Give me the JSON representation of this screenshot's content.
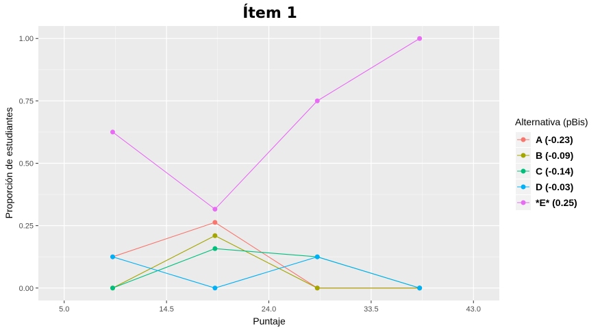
{
  "chart_data": {
    "type": "line",
    "title": "Ítem  1",
    "xlabel": "Puntaje",
    "ylabel": "Proporción de estudiantes",
    "xlim": [
      2.6,
      45.4
    ],
    "ylim": [
      -0.05,
      1.05
    ],
    "x_ticks": [
      5.0,
      14.5,
      24.0,
      33.5,
      43.0
    ],
    "x_tick_labels": [
      "5.0",
      "14.5",
      "24.0",
      "33.5",
      "43.0"
    ],
    "y_ticks": [
      0.0,
      0.25,
      0.5,
      0.75,
      1.0
    ],
    "y_tick_labels": [
      "0.00",
      "0.25",
      "0.50",
      "0.75",
      "1.00"
    ],
    "grid": true,
    "legend": {
      "title": "Alternativa (pBis)",
      "position": "right"
    },
    "x": [
      9.5,
      19.0,
      28.5,
      38.0
    ],
    "series": [
      {
        "name": "A  (-0.23)",
        "color": "#F8766D",
        "values": [
          0.125,
          0.263,
          0.0,
          0.0
        ]
      },
      {
        "name": "B  (-0.09)",
        "color": "#A3A500",
        "values": [
          0.0,
          0.21,
          0.0,
          0.0
        ]
      },
      {
        "name": "C  (-0.14)",
        "color": "#00BF7D",
        "values": [
          0.0,
          0.158,
          0.125,
          0.0
        ]
      },
      {
        "name": "D  (-0.03)",
        "color": "#00B0F6",
        "values": [
          0.125,
          0.0,
          0.125,
          0.0
        ]
      },
      {
        "name": "*E* (0.25)",
        "color": "#E76BF3",
        "values": [
          0.625,
          0.316,
          0.75,
          1.0
        ]
      }
    ]
  }
}
